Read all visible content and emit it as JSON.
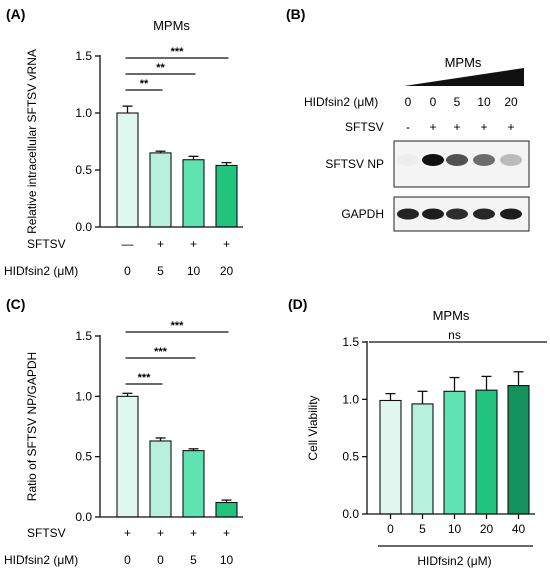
{
  "panels": {
    "A": {
      "letter": "(A)"
    },
    "B": {
      "letter": "(B)"
    },
    "C": {
      "letter": "(C)"
    },
    "D": {
      "letter": "(D)"
    }
  },
  "colors": {
    "bar0": "#dff7ee",
    "bar1": "#b7f0dc",
    "bar2": "#5fe3b3",
    "bar3": "#22c37f",
    "bar4": "#14935e",
    "axis": "#111111"
  },
  "chart_data": [
    {
      "panel": "A",
      "type": "bar",
      "title": "MPMs",
      "xlabel": "",
      "ylabel": "Relative intracellular SFTSV vRNA",
      "ylim": [
        0,
        1.5
      ],
      "yticks": [
        "0.0",
        "0.5",
        "1.0",
        "1.5"
      ],
      "values": [
        1.0,
        0.65,
        0.59,
        0.54
      ],
      "errors": [
        0.06,
        0.015,
        0.03,
        0.025
      ],
      "color_keys": [
        "bar0",
        "bar1",
        "bar2",
        "bar3"
      ],
      "row_labels": [
        {
          "label": "SFTSV",
          "values": [
            "—",
            "+",
            "+",
            "+"
          ]
        },
        {
          "label": "HIDfsin2 (μM)",
          "values": [
            "0",
            "5",
            "10",
            "20"
          ]
        }
      ],
      "significance": [
        {
          "from": 0,
          "to": 1,
          "label": "**"
        },
        {
          "from": 0,
          "to": 2,
          "label": "**"
        },
        {
          "from": 0,
          "to": 3,
          "label": "***"
        }
      ]
    },
    {
      "panel": "C",
      "type": "bar",
      "title": "",
      "xlabel": "",
      "ylabel": "Ratio of SFTSV NP/GAPDH",
      "ylim": [
        0,
        1.5
      ],
      "yticks": [
        "0.0",
        "0.5",
        "1.0",
        "1.5"
      ],
      "values": [
        1.0,
        0.63,
        0.55,
        0.12
      ],
      "errors": [
        0.025,
        0.025,
        0.015,
        0.02
      ],
      "color_keys": [
        "bar0",
        "bar1",
        "bar2",
        "bar3"
      ],
      "row_labels": [
        {
          "label": "SFTSV",
          "values": [
            "+",
            "+",
            "+",
            "+"
          ]
        },
        {
          "label": "HIDfsin2 (μM)",
          "values": [
            "0",
            "0",
            "5",
            "10"
          ]
        }
      ],
      "significance": [
        {
          "from": 0,
          "to": 1,
          "label": "***"
        },
        {
          "from": 0,
          "to": 2,
          "label": "***"
        },
        {
          "from": 0,
          "to": 3,
          "label": "***"
        }
      ]
    },
    {
      "panel": "D",
      "type": "bar",
      "title": "MPMs",
      "xlabel": "HIDfsin2 (μM)",
      "ylabel": "Cell Viability",
      "ylim": [
        0,
        1.5
      ],
      "yticks": [
        "0.0",
        "0.5",
        "1.0",
        "1.5"
      ],
      "categories": [
        "0",
        "5",
        "10",
        "20",
        "40"
      ],
      "values": [
        0.99,
        0.96,
        1.07,
        1.08,
        1.12
      ],
      "errors": [
        0.06,
        0.11,
        0.12,
        0.12,
        0.12
      ],
      "color_keys": [
        "bar0",
        "bar1",
        "bar2",
        "bar3",
        "bar4"
      ],
      "significance": [
        {
          "from": 0,
          "to": 4,
          "label": "ns"
        }
      ]
    }
  ],
  "blot": {
    "title": "MPMs",
    "rows": [
      {
        "label": "HIDfsin2 (μM)",
        "values": [
          "0",
          "0",
          "5",
          "10",
          "20"
        ]
      },
      {
        "label": "SFTSV",
        "values": [
          "-",
          "+",
          "+",
          "+",
          "+"
        ]
      }
    ],
    "bands": [
      {
        "label": "SFTSV NP",
        "intensities": [
          0.03,
          1.0,
          0.72,
          0.6,
          0.25
        ]
      },
      {
        "label": "GAPDH",
        "intensities": [
          0.92,
          0.95,
          0.88,
          0.9,
          0.95
        ]
      }
    ]
  }
}
